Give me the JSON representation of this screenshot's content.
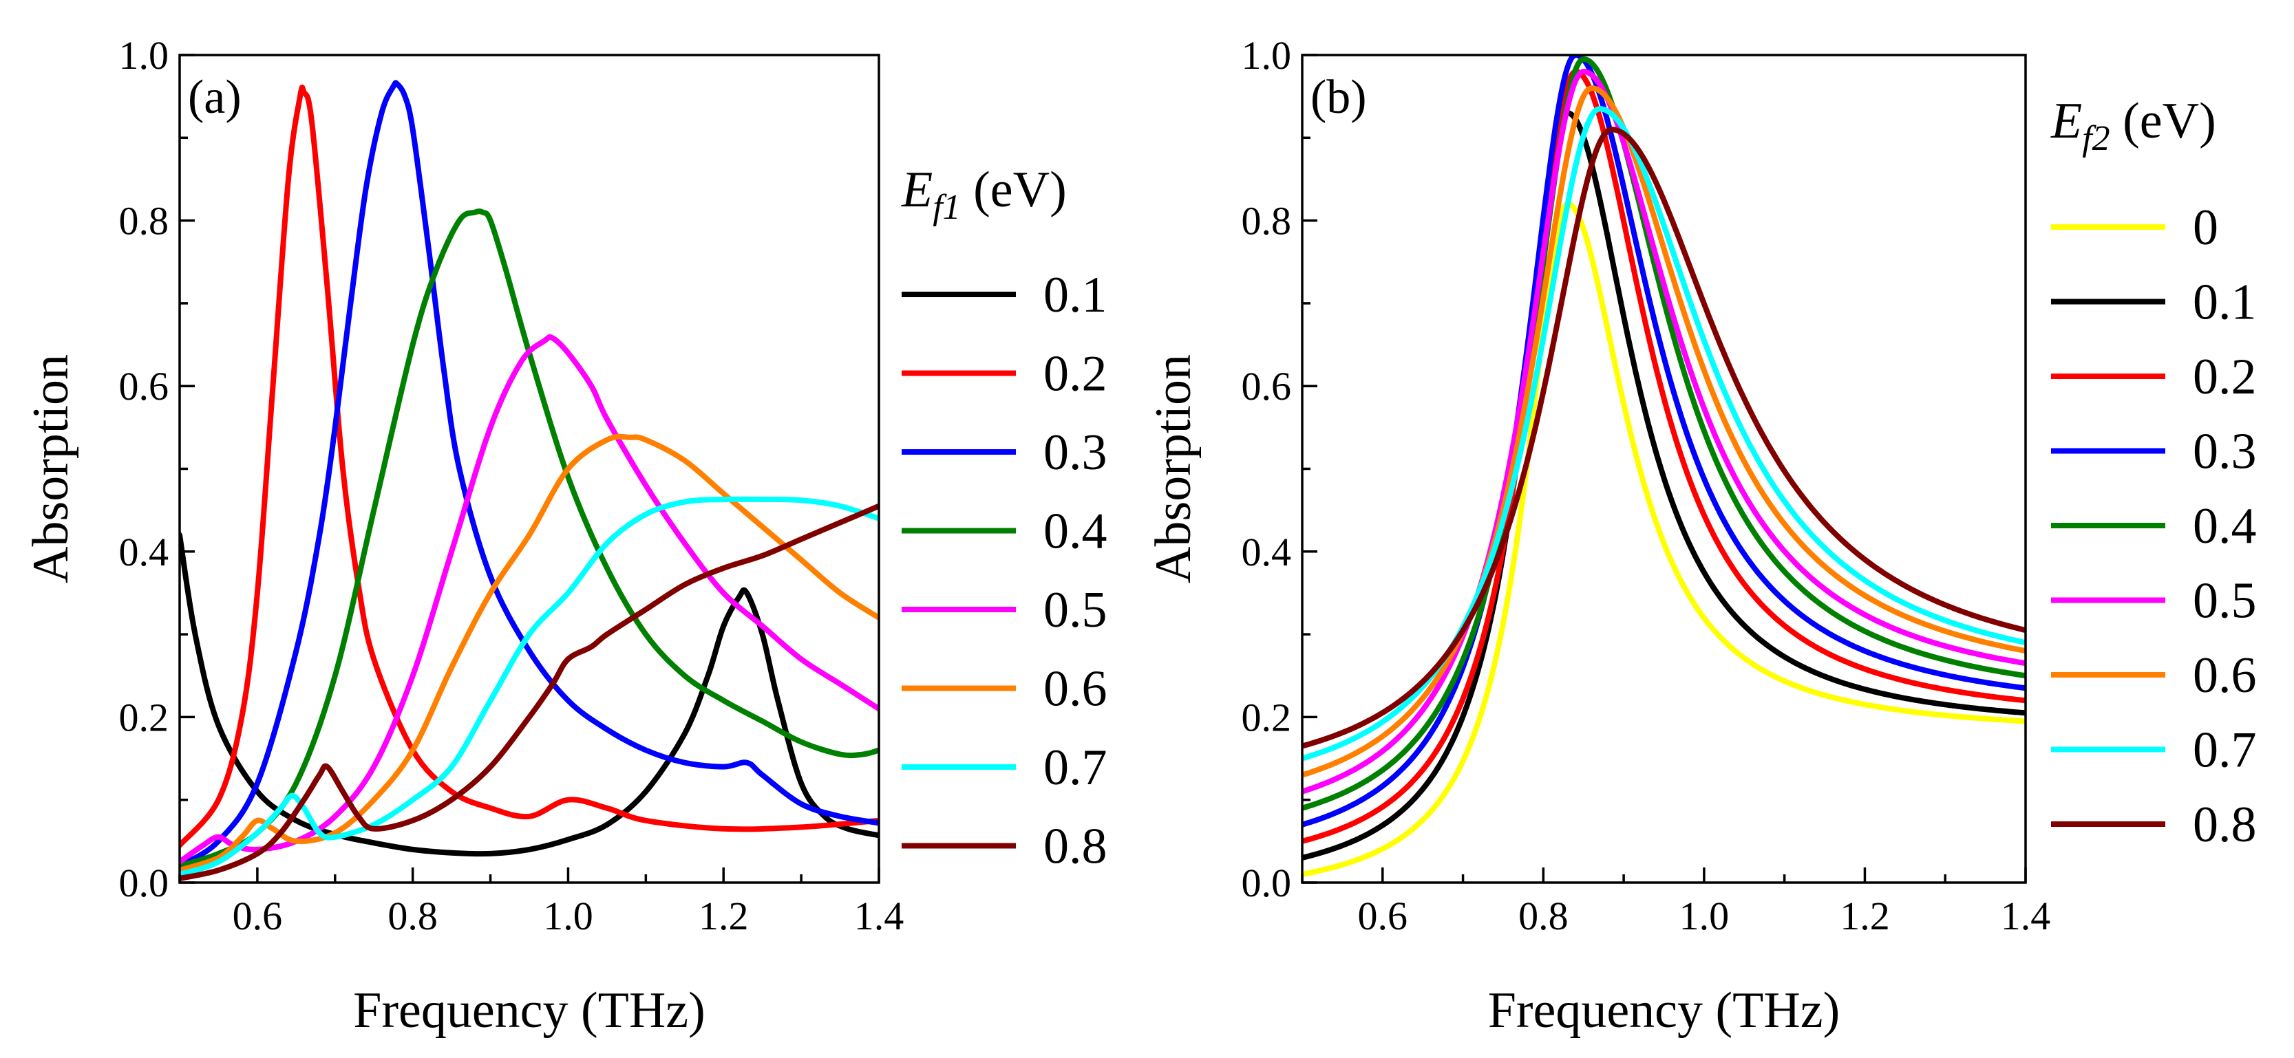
{
  "chart_data": [
    {
      "type": "line",
      "panel_label": "(a)",
      "xlabel": "Frequency (THz)",
      "ylabel": "Absorption",
      "xlim": [
        0.5,
        1.4
      ],
      "ylim": [
        0.0,
        1.0
      ],
      "xticks": [
        0.6,
        0.8,
        1.0,
        1.2,
        1.4
      ],
      "yticks": [
        0.0,
        0.2,
        0.4,
        0.6,
        0.8,
        1.0
      ],
      "xtick_labels": [
        "0.6",
        "0.8",
        "1.0",
        "1.2",
        "1.4"
      ],
      "ytick_labels": [
        "0.0",
        "0.2",
        "0.4",
        "0.6",
        "0.8",
        "1.0"
      ],
      "legend": {
        "title_italic": "E",
        "title_subscript": "f1",
        "title_unit": " (eV)",
        "placement": "right"
      },
      "series": [
        {
          "name": "0.1",
          "color": "#000000",
          "x": [
            0.5,
            0.52,
            0.55,
            0.6,
            0.65,
            0.7,
            0.75,
            0.8,
            0.85,
            0.9,
            0.95,
            1.0,
            1.05,
            1.1,
            1.15,
            1.18,
            1.2,
            1.22,
            1.23,
            1.25,
            1.27,
            1.3,
            1.33,
            1.36,
            1.4
          ],
          "y": [
            0.42,
            0.3,
            0.19,
            0.11,
            0.075,
            0.058,
            0.048,
            0.04,
            0.036,
            0.035,
            0.04,
            0.052,
            0.07,
            0.11,
            0.18,
            0.25,
            0.31,
            0.345,
            0.35,
            0.3,
            0.22,
            0.12,
            0.08,
            0.065,
            0.057
          ]
        },
        {
          "name": "0.2",
          "color": "#ff0000",
          "x": [
            0.5,
            0.55,
            0.58,
            0.6,
            0.62,
            0.64,
            0.655,
            0.66,
            0.67,
            0.69,
            0.71,
            0.73,
            0.75,
            0.8,
            0.85,
            0.9,
            0.95,
            1.0,
            1.05,
            1.1,
            1.2,
            1.3,
            1.4
          ],
          "y": [
            0.045,
            0.1,
            0.2,
            0.35,
            0.6,
            0.85,
            0.95,
            0.955,
            0.92,
            0.72,
            0.5,
            0.36,
            0.27,
            0.16,
            0.11,
            0.09,
            0.08,
            0.1,
            0.09,
            0.075,
            0.065,
            0.067,
            0.075
          ]
        },
        {
          "name": "0.3",
          "color": "#0000ff",
          "x": [
            0.5,
            0.55,
            0.6,
            0.65,
            0.68,
            0.7,
            0.72,
            0.74,
            0.76,
            0.775,
            0.78,
            0.79,
            0.8,
            0.82,
            0.84,
            0.86,
            0.9,
            0.95,
            1.0,
            1.05,
            1.1,
            1.15,
            1.2,
            1.23,
            1.25,
            1.3,
            1.35,
            1.4
          ],
          "y": [
            0.02,
            0.05,
            0.12,
            0.28,
            0.42,
            0.55,
            0.7,
            0.84,
            0.93,
            0.962,
            0.965,
            0.95,
            0.91,
            0.77,
            0.62,
            0.5,
            0.37,
            0.28,
            0.22,
            0.185,
            0.16,
            0.145,
            0.14,
            0.145,
            0.13,
            0.095,
            0.08,
            0.072
          ]
        },
        {
          "name": "0.4",
          "color": "#008000",
          "x": [
            0.5,
            0.55,
            0.6,
            0.65,
            0.7,
            0.75,
            0.8,
            0.83,
            0.86,
            0.88,
            0.89,
            0.9,
            0.92,
            0.95,
            1.0,
            1.05,
            1.1,
            1.15,
            1.2,
            1.25,
            1.3,
            1.35,
            1.38,
            1.4
          ],
          "y": [
            0.02,
            0.035,
            0.06,
            0.12,
            0.25,
            0.45,
            0.65,
            0.74,
            0.8,
            0.81,
            0.81,
            0.8,
            0.74,
            0.64,
            0.49,
            0.38,
            0.3,
            0.25,
            0.22,
            0.195,
            0.17,
            0.155,
            0.155,
            0.16
          ]
        },
        {
          "name": "0.5",
          "color": "#ff00ff",
          "x": [
            0.5,
            0.53,
            0.55,
            0.57,
            0.6,
            0.65,
            0.7,
            0.75,
            0.8,
            0.85,
            0.9,
            0.94,
            0.97,
            0.98,
            1.0,
            1.03,
            1.05,
            1.1,
            1.15,
            1.2,
            1.25,
            1.3,
            1.35,
            1.4
          ],
          "y": [
            0.025,
            0.045,
            0.055,
            0.045,
            0.04,
            0.05,
            0.08,
            0.14,
            0.25,
            0.4,
            0.55,
            0.63,
            0.655,
            0.658,
            0.64,
            0.6,
            0.56,
            0.48,
            0.41,
            0.35,
            0.31,
            0.27,
            0.24,
            0.21
          ]
        },
        {
          "name": "0.6",
          "color": "#ff8000",
          "x": [
            0.5,
            0.55,
            0.58,
            0.6,
            0.62,
            0.65,
            0.7,
            0.75,
            0.8,
            0.85,
            0.9,
            0.95,
            1.0,
            1.05,
            1.08,
            1.1,
            1.15,
            1.2,
            1.25,
            1.3,
            1.35,
            1.4
          ],
          "y": [
            0.015,
            0.03,
            0.055,
            0.075,
            0.065,
            0.05,
            0.06,
            0.1,
            0.16,
            0.26,
            0.35,
            0.42,
            0.5,
            0.535,
            0.538,
            0.535,
            0.51,
            0.47,
            0.43,
            0.39,
            0.35,
            0.32
          ]
        },
        {
          "name": "0.7",
          "color": "#00ffff",
          "x": [
            0.5,
            0.55,
            0.6,
            0.63,
            0.645,
            0.66,
            0.68,
            0.7,
            0.75,
            0.8,
            0.85,
            0.9,
            0.95,
            1.0,
            1.05,
            1.1,
            1.15,
            1.2,
            1.25,
            1.3,
            1.35,
            1.4
          ],
          "y": [
            0.01,
            0.025,
            0.06,
            0.09,
            0.105,
            0.09,
            0.06,
            0.055,
            0.07,
            0.1,
            0.14,
            0.22,
            0.3,
            0.35,
            0.41,
            0.445,
            0.46,
            0.463,
            0.463,
            0.462,
            0.455,
            0.44
          ]
        },
        {
          "name": "0.8",
          "color": "#800000",
          "x": [
            0.5,
            0.55,
            0.6,
            0.63,
            0.66,
            0.68,
            0.69,
            0.71,
            0.73,
            0.75,
            0.8,
            0.85,
            0.9,
            0.95,
            0.98,
            1.0,
            1.03,
            1.05,
            1.1,
            1.15,
            1.2,
            1.25,
            1.3,
            1.35,
            1.4
          ],
          "y": [
            0.005,
            0.015,
            0.035,
            0.06,
            0.1,
            0.13,
            0.14,
            0.11,
            0.08,
            0.065,
            0.075,
            0.1,
            0.14,
            0.2,
            0.24,
            0.27,
            0.285,
            0.3,
            0.33,
            0.36,
            0.38,
            0.395,
            0.415,
            0.435,
            0.455
          ]
        }
      ]
    },
    {
      "type": "line",
      "panel_label": "(b)",
      "xlabel": "Frequency (THz)",
      "ylabel": "Absorption",
      "xlim": [
        0.5,
        1.4
      ],
      "ylim": [
        0.0,
        1.0
      ],
      "xticks": [
        0.6,
        0.8,
        1.0,
        1.2,
        1.4
      ],
      "yticks": [
        0.0,
        0.2,
        0.4,
        0.6,
        0.8,
        1.0
      ],
      "xtick_labels": [
        "0.6",
        "0.8",
        "1.0",
        "1.2",
        "1.4"
      ],
      "ytick_labels": [
        "0.0",
        "0.2",
        "0.4",
        "0.6",
        "0.8",
        "1.0"
      ],
      "legend": {
        "title_italic": "E",
        "title_subscript": "f2",
        "title_unit": " (eV)",
        "placement": "right"
      },
      "series": [
        {
          "name": "0",
          "color": "#ffff00",
          "peak_x": 0.83,
          "peak_y": 0.82,
          "y_left": 0.01,
          "y_right": 0.195,
          "width_left": 0.065,
          "width_right": 0.09
        },
        {
          "name": "0.1",
          "color": "#000000",
          "peak_x": 0.83,
          "peak_y": 0.93,
          "y_left": 0.03,
          "y_right": 0.205,
          "width_left": 0.07,
          "width_right": 0.1
        },
        {
          "name": "0.2",
          "color": "#ff0000",
          "peak_x": 0.84,
          "peak_y": 0.98,
          "y_left": 0.05,
          "y_right": 0.22,
          "width_left": 0.075,
          "width_right": 0.11
        },
        {
          "name": "0.3",
          "color": "#0000ff",
          "peak_x": 0.84,
          "peak_y": 1.0,
          "y_left": 0.07,
          "y_right": 0.235,
          "width_left": 0.08,
          "width_right": 0.12
        },
        {
          "name": "0.4",
          "color": "#008000",
          "peak_x": 0.85,
          "peak_y": 0.995,
          "y_left": 0.09,
          "y_right": 0.25,
          "width_left": 0.085,
          "width_right": 0.13
        },
        {
          "name": "0.5",
          "color": "#ff00ff",
          "peak_x": 0.85,
          "peak_y": 0.98,
          "y_left": 0.11,
          "y_right": 0.265,
          "width_left": 0.09,
          "width_right": 0.14
        },
        {
          "name": "0.6",
          "color": "#ff8000",
          "peak_x": 0.86,
          "peak_y": 0.96,
          "y_left": 0.13,
          "y_right": 0.28,
          "width_left": 0.095,
          "width_right": 0.15
        },
        {
          "name": "0.7",
          "color": "#00ffff",
          "peak_x": 0.87,
          "peak_y": 0.935,
          "y_left": 0.15,
          "y_right": 0.29,
          "width_left": 0.1,
          "width_right": 0.16
        },
        {
          "name": "0.8",
          "color": "#800000",
          "peak_x": 0.885,
          "peak_y": 0.91,
          "y_left": 0.165,
          "y_right": 0.305,
          "width_left": 0.105,
          "width_right": 0.17
        }
      ]
    }
  ]
}
